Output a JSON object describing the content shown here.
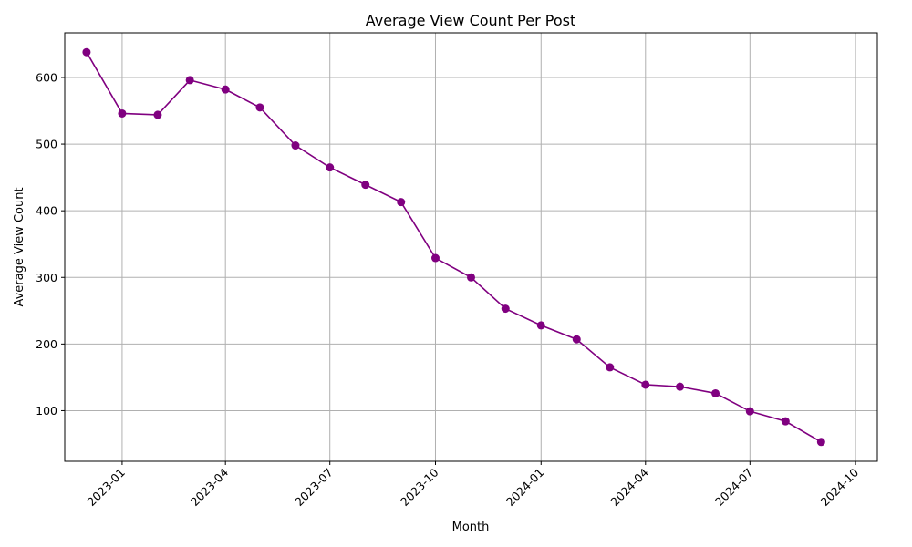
{
  "chart_data": {
    "type": "line",
    "title": "Average View Count Per Post",
    "xlabel": "Month",
    "ylabel": "Average View Count",
    "x": [
      "2022-12-01",
      "2023-01-01",
      "2023-02-01",
      "2023-03-01",
      "2023-04-01",
      "2023-05-01",
      "2023-06-01",
      "2023-07-01",
      "2023-08-01",
      "2023-09-01",
      "2023-10-01",
      "2023-11-01",
      "2023-12-01",
      "2024-01-01",
      "2024-02-01",
      "2024-03-01",
      "2024-04-01",
      "2024-05-01",
      "2024-06-01",
      "2024-07-01",
      "2024-08-01",
      "2024-09-01"
    ],
    "series": [
      {
        "values": [
          638,
          546,
          544,
          596,
          582,
          555,
          498,
          465,
          439,
          413,
          329,
          300,
          253,
          228,
          207,
          165,
          139,
          136,
          126,
          99,
          84,
          53
        ],
        "color": "#800080"
      }
    ],
    "xlim": [
      "2022-11-12",
      "2024-10-20"
    ],
    "ylim": [
      24,
      667
    ],
    "xticks": [
      "2023-01",
      "2023-04",
      "2023-07",
      "2023-10",
      "2024-01",
      "2024-04",
      "2024-07",
      "2024-10"
    ],
    "yticks": [
      100,
      200,
      300,
      400,
      500,
      600
    ],
    "grid": true,
    "marker": "circle"
  }
}
